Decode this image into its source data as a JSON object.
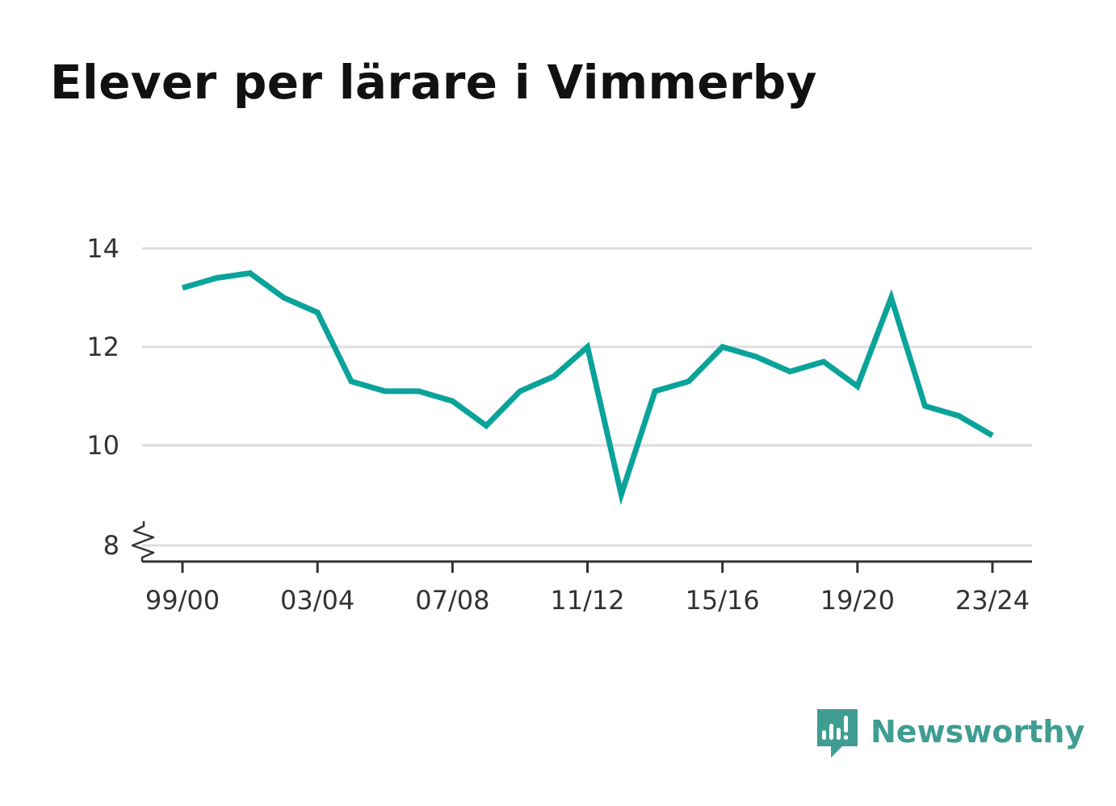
{
  "title": "Elever per lärare i Vimmerby",
  "brand": {
    "name": "Newsworthy",
    "icon": "newsworthy-logo-icon",
    "color": "#3f9d92"
  },
  "chart_data": {
    "type": "line",
    "title": "Elever per lärare i Vimmerby",
    "xlabel": "",
    "ylabel": "",
    "x": [
      "99/00",
      "00/01",
      "01/02",
      "02/03",
      "03/04",
      "04/05",
      "05/06",
      "06/07",
      "07/08",
      "08/09",
      "09/10",
      "10/11",
      "11/12",
      "12/13",
      "13/14",
      "14/15",
      "15/16",
      "16/17",
      "17/18",
      "18/19",
      "19/20",
      "20/21",
      "21/22",
      "22/23",
      "23/24"
    ],
    "series": [
      {
        "values": [
          13.2,
          13.4,
          13.5,
          13.0,
          12.7,
          11.3,
          11.1,
          11.1,
          10.9,
          10.4,
          11.1,
          11.4,
          12.0,
          9.0,
          11.1,
          11.3,
          12.0,
          11.8,
          11.5,
          11.7,
          11.2,
          13.0,
          10.8,
          10.6,
          10.2
        ],
        "color": "#0aa39a"
      }
    ],
    "x_tick_labels": [
      "99/00",
      "03/04",
      "07/08",
      "11/12",
      "15/16",
      "19/20",
      "23/24"
    ],
    "y_ticks": [
      8,
      10,
      12,
      14
    ],
    "y_tick_labels": [
      "8",
      "10",
      "12",
      "14"
    ],
    "ylim": [
      8,
      14
    ],
    "y_axis_break": true,
    "grid": "horizontal",
    "grid_color": "#dddddd",
    "axis_color": "#333333"
  }
}
